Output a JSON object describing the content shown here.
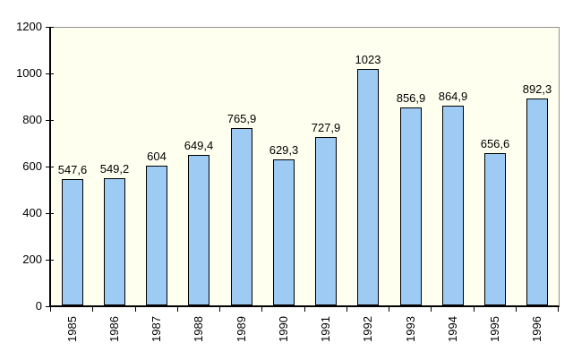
{
  "chart_data": {
    "type": "bar",
    "title": "",
    "xlabel": "",
    "ylabel": "",
    "categories": [
      "1985",
      "1986",
      "1987",
      "1988",
      "1989",
      "1990",
      "1991",
      "1992",
      "1993",
      "1994",
      "1995",
      "1996"
    ],
    "values": [
      547.6,
      549.2,
      604,
      649.4,
      765.9,
      629.3,
      727.9,
      1023,
      856.9,
      864.9,
      656.6,
      892.3
    ],
    "value_labels": [
      "547,6",
      "549,2",
      "604",
      "649,4",
      "765,9",
      "629,3",
      "727,9",
      "1023",
      "856,9",
      "864,9",
      "656,6",
      "892,3"
    ],
    "ylim": [
      0,
      1200
    ],
    "y_ticks": [
      0,
      200,
      400,
      600,
      800,
      1000,
      1200
    ],
    "y_tick_labels": [
      "0",
      "200",
      "400",
      "600",
      "800",
      "1000",
      "1200"
    ],
    "grid": false,
    "legend": null,
    "colors": {
      "bar_fill": "#9ECBF3",
      "bar_border": "#000000",
      "plot_background": "#FFFFF0",
      "outer_background": "#FFFFFF",
      "axis": "#000000",
      "frame": "#909090",
      "text": "#000000"
    }
  }
}
